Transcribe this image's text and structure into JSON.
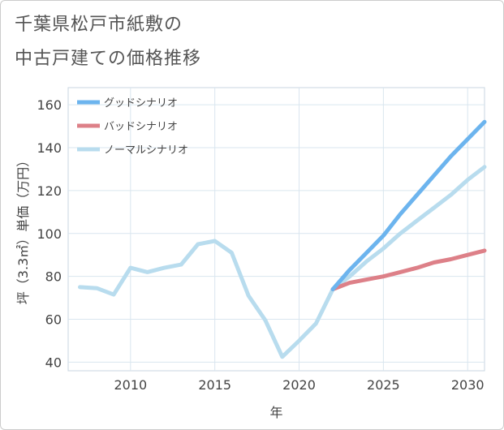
{
  "title": {
    "line1": "千葉県松戸市紙敷の",
    "line2": "中古戸建ての価格推移"
  },
  "chart_data": {
    "type": "line",
    "xlabel": "年",
    "ylabel": "坪（3.3㎡）単価（万円）",
    "xlim": [
      2006.3,
      2031
    ],
    "ylim": [
      36,
      168
    ],
    "xticks": [
      2010,
      2015,
      2020,
      2025,
      2030
    ],
    "yticks": [
      40,
      60,
      80,
      100,
      120,
      140,
      160
    ],
    "grid": true,
    "legend_position": "top-left",
    "series": [
      {
        "name": "グッドシナリオ",
        "color": "#6cb4ee",
        "x": [
          2022,
          2023,
          2024,
          2025,
          2026,
          2027,
          2028,
          2029,
          2030,
          2031
        ],
        "values": [
          74,
          83,
          91,
          99,
          109,
          118,
          127,
          136,
          144,
          152
        ]
      },
      {
        "name": "バッドシナリオ",
        "color": "#dd8088",
        "x": [
          2022,
          2023,
          2024,
          2025,
          2026,
          2027,
          2028,
          2029,
          2030,
          2031
        ],
        "values": [
          74,
          77,
          78.5,
          80,
          82,
          84,
          86.5,
          88,
          90,
          92
        ]
      },
      {
        "name": "ノーマルシナリオ",
        "color": "#b8dcee",
        "x": [
          2007,
          2008,
          2009,
          2010,
          2011,
          2012,
          2013,
          2014,
          2015,
          2016,
          2017,
          2018,
          2019,
          2020,
          2021,
          2022,
          2023,
          2024,
          2025,
          2026,
          2027,
          2028,
          2029,
          2030,
          2031
        ],
        "values": [
          75,
          74.5,
          71.5,
          84,
          82,
          84,
          85.5,
          95,
          96.5,
          91,
          71,
          59.5,
          42.5,
          50,
          58,
          74,
          80,
          87,
          93,
          100,
          106,
          112,
          118,
          125,
          131
        ]
      }
    ]
  }
}
